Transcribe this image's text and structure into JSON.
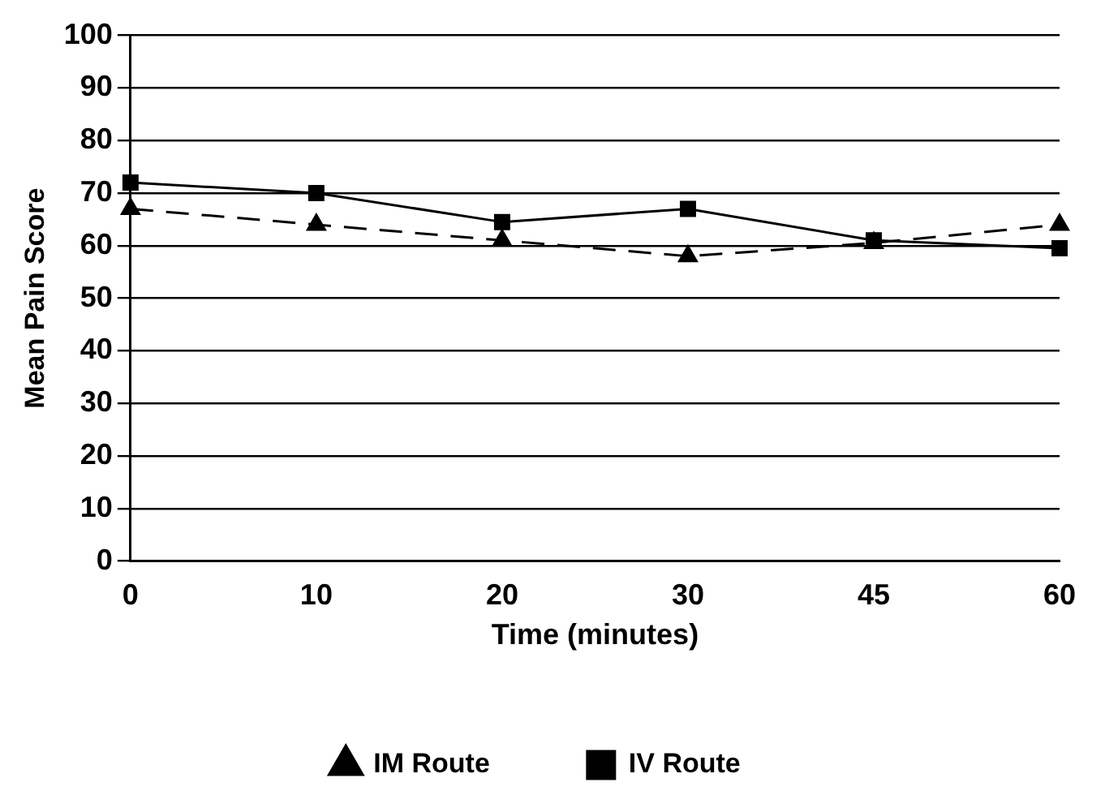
{
  "chart_data": {
    "type": "line",
    "xlabel": "Time (minutes)",
    "ylabel": "Mean Pain Score",
    "categories": [
      "0",
      "10",
      "20",
      "30",
      "45",
      "60"
    ],
    "series": [
      {
        "name": "IV Route",
        "color": "#000000",
        "marker": "square",
        "line_style": "solid",
        "values": [
          72,
          70,
          64.5,
          67,
          61,
          59.5
        ]
      },
      {
        "name": "IM Route",
        "color": "#000000",
        "marker": "triangle",
        "line_style": "dashed",
        "values": [
          67,
          64,
          61,
          58,
          60.5,
          64
        ]
      }
    ],
    "ylim": [
      0,
      100
    ],
    "yticks": [
      0,
      10,
      20,
      30,
      40,
      50,
      60,
      70,
      80,
      90,
      100
    ],
    "grid": "y",
    "legend": "bottom"
  }
}
